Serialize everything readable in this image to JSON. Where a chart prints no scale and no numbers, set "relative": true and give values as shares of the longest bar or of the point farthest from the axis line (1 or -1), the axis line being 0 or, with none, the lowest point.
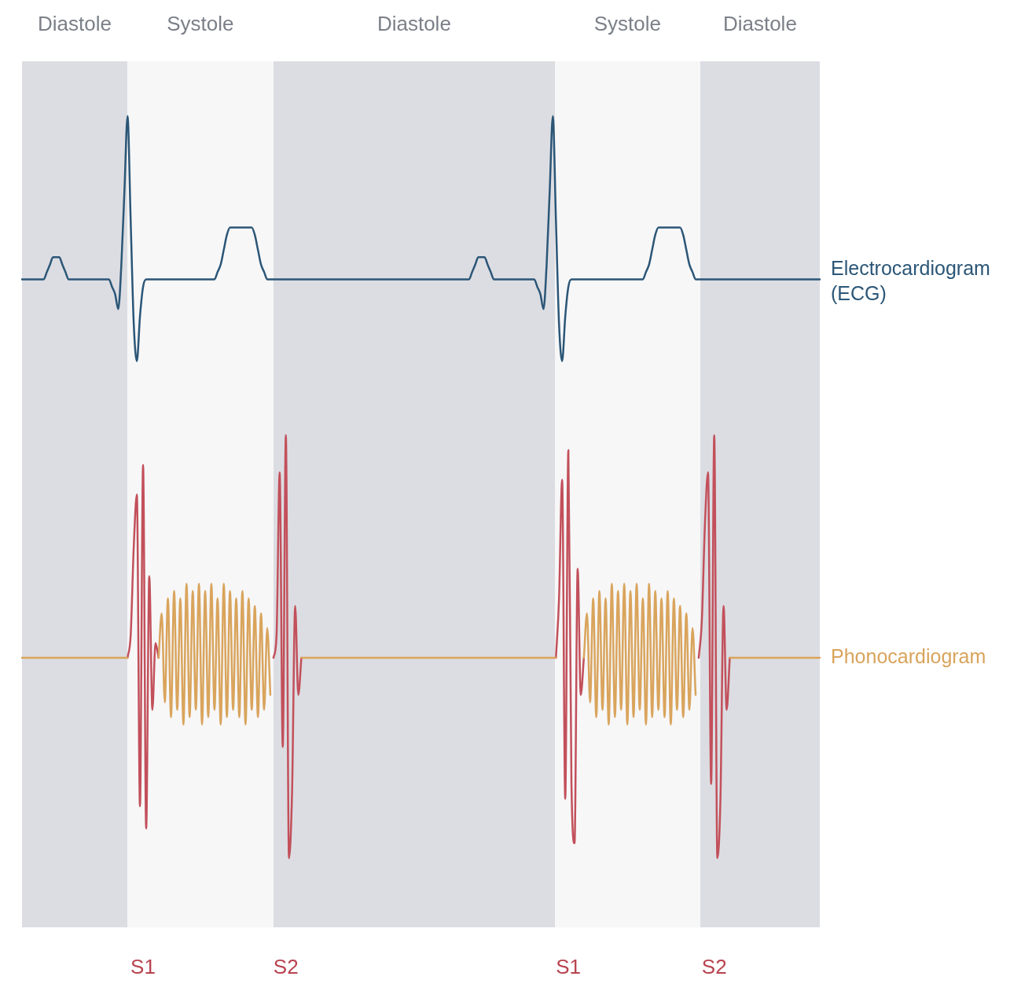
{
  "chart_data": {
    "type": "line",
    "relative": true,
    "categories": [
      null,
      null,
      null,
      null,
      null,
      null,
      null,
      null,
      null,
      null,
      null,
      null,
      null,
      null,
      null,
      null,
      null,
      null,
      null,
      null,
      null,
      null,
      null,
      null,
      null,
      null,
      null,
      null,
      null,
      null,
      null,
      null,
      null,
      null,
      null,
      null,
      null,
      null,
      null,
      "S1",
      null,
      null,
      null,
      null,
      null,
      null,
      null,
      null,
      null,
      null,
      null,
      null,
      null,
      null,
      null,
      null,
      null,
      null,
      null,
      null,
      null,
      null,
      null,
      null,
      null,
      null,
      null,
      null,
      null,
      null,
      null,
      null,
      null,
      null,
      null,
      null,
      null,
      null,
      null,
      null,
      null,
      null,
      null,
      null,
      null,
      "S2",
      null,
      null,
      null,
      null,
      null,
      null,
      null,
      null,
      null,
      null,
      null,
      null,
      null,
      null,
      null,
      null,
      null,
      null,
      null,
      null,
      null,
      null,
      null,
      null,
      null,
      null,
      null,
      null,
      null,
      null,
      null,
      null,
      null,
      null,
      null,
      null,
      null,
      null,
      null,
      null,
      null,
      null,
      null,
      null,
      null,
      null,
      null,
      null,
      null,
      null,
      null,
      null,
      null,
      null,
      null,
      null,
      null,
      null,
      null,
      null,
      null,
      null,
      null,
      null,
      null,
      null,
      null,
      null,
      null,
      null,
      null,
      null,
      null,
      null,
      null,
      null,
      null,
      null,
      null,
      null,
      null,
      null,
      null,
      null,
      null,
      null,
      null,
      null,
      null,
      null,
      "S1",
      null,
      null,
      null,
      null,
      null,
      null,
      null,
      null,
      null,
      null,
      null,
      null,
      null,
      null,
      null,
      null,
      null,
      null,
      null,
      null,
      null,
      null,
      null,
      null,
      null,
      null,
      null,
      null,
      null,
      null,
      null,
      null,
      null,
      null,
      null,
      null,
      null,
      null,
      null,
      null,
      null,
      null,
      null,
      null,
      null,
      null,
      "S2",
      null,
      null,
      null,
      null,
      null,
      null,
      null,
      null,
      null,
      null,
      null,
      null,
      null,
      null,
      null,
      null,
      null,
      null,
      null,
      null,
      null,
      null,
      null,
      null,
      null,
      null,
      null,
      null,
      null,
      null,
      null,
      null,
      null,
      null
    ],
    "annotations": [
      "Diastole",
      "Systole",
      "Diastole",
      "Systole",
      "Diastole"
    ],
    "series": [
      {
        "name": "Electrocardiogram (ECG)",
        "color": "#2b5677",
        "values": [
          0.78,
          0.78,
          0.78,
          0.78,
          0.78,
          0.78,
          0.78,
          0.78,
          0.79,
          0.8,
          0.81,
          0.81,
          0.81,
          0.8,
          0.79,
          0.78,
          0.78,
          0.78,
          0.78,
          0.78,
          0.78,
          0.78,
          0.78,
          0.78,
          0.78,
          0.78,
          0.78,
          0.78,
          0.78,
          0.77,
          0.76,
          0.74,
          0.8,
          0.9,
          1.0,
          0.86,
          0.72,
          0.67,
          0.73,
          0.77,
          0.78,
          0.78,
          0.78,
          0.78,
          0.78,
          0.78,
          0.78,
          0.78,
          0.78,
          0.78,
          0.78,
          0.78,
          0.78,
          0.78,
          0.78,
          0.78,
          0.78,
          0.78,
          0.78,
          0.78,
          0.78,
          0.78,
          0.78,
          0.79,
          0.8,
          0.82,
          0.84,
          0.85,
          0.85,
          0.85,
          0.85,
          0.85,
          0.85,
          0.85,
          0.85,
          0.84,
          0.82,
          0.8,
          0.79,
          0.78,
          0.78,
          0.78,
          0.78,
          0.78,
          0.78,
          0.78,
          0.78,
          0.78,
          0.78,
          0.78,
          0.78,
          0.78,
          0.78,
          0.78,
          0.78,
          0.78,
          0.78,
          0.78,
          0.78,
          0.78,
          0.78,
          0.78,
          0.78,
          0.78,
          0.78,
          0.78,
          0.78,
          0.78,
          0.78,
          0.78,
          0.78,
          0.78,
          0.78,
          0.78,
          0.78,
          0.78,
          0.78,
          0.78,
          0.78,
          0.78,
          0.78,
          0.78,
          0.78,
          0.78,
          0.78,
          0.78,
          0.78,
          0.78,
          0.78,
          0.78,
          0.78,
          0.78,
          0.78,
          0.78,
          0.78,
          0.78,
          0.78,
          0.78,
          0.78,
          0.78,
          0.78,
          0.78,
          0.78,
          0.78,
          0.78,
          0.79,
          0.8,
          0.81,
          0.81,
          0.81,
          0.8,
          0.79,
          0.78,
          0.78,
          0.78,
          0.78,
          0.78,
          0.78,
          0.78,
          0.78,
          0.78,
          0.78,
          0.78,
          0.78,
          0.78,
          0.78,
          0.77,
          0.76,
          0.74,
          0.8,
          0.9,
          1.0,
          0.86,
          0.72,
          0.67,
          0.73,
          0.77,
          0.78,
          0.78,
          0.78,
          0.78,
          0.78,
          0.78,
          0.78,
          0.78,
          0.78,
          0.78,
          0.78,
          0.78,
          0.78,
          0.78,
          0.78,
          0.78,
          0.78,
          0.78,
          0.78,
          0.78,
          0.78,
          0.78,
          0.78,
          0.78,
          0.79,
          0.8,
          0.82,
          0.84,
          0.85,
          0.85,
          0.85,
          0.85,
          0.85,
          0.85,
          0.85,
          0.85,
          0.84,
          0.82,
          0.8,
          0.79,
          0.78,
          0.78,
          0.78,
          0.78,
          0.78,
          0.78,
          0.78,
          0.78,
          0.78,
          0.78,
          0.78,
          0.78,
          0.78,
          0.78,
          0.78,
          0.78,
          0.78,
          0.78,
          0.78,
          0.78,
          0.78,
          0.78,
          0.78,
          0.78,
          0.78,
          0.78,
          0.78,
          0.78,
          0.78,
          0.78,
          0.78,
          0.78,
          0.78,
          0.78,
          0.78,
          0.78,
          0.78,
          0.78,
          0.78,
          0.78,
          0.78
        ]
      },
      {
        "name": "Phonocardiogram",
        "color": "#d9a45c",
        "values": [
          0.27,
          0.27,
          0.27,
          0.27,
          0.27,
          0.27,
          0.27,
          0.27,
          0.27,
          0.27,
          0.27,
          0.27,
          0.27,
          0.27,
          0.27,
          0.27,
          0.27,
          0.27,
          0.27,
          0.27,
          0.27,
          0.27,
          0.27,
          0.27,
          0.27,
          0.27,
          0.27,
          0.27,
          0.27,
          0.27,
          0.27,
          0.27,
          0.27,
          0.27,
          0.27,
          null,
          null,
          null,
          null,
          null,
          null,
          null,
          null,
          null,
          0.27,
          0.33,
          0.21,
          0.35,
          0.19,
          0.36,
          0.2,
          0.35,
          0.18,
          0.37,
          0.19,
          0.36,
          0.2,
          0.37,
          0.18,
          0.36,
          0.19,
          0.37,
          0.2,
          0.35,
          0.18,
          0.37,
          0.19,
          0.36,
          0.2,
          0.35,
          0.19,
          0.36,
          0.18,
          0.35,
          0.2,
          0.34,
          0.19,
          0.33,
          0.2,
          0.31,
          0.22,
          null,
          null,
          null,
          null,
          null,
          null,
          null,
          null,
          null,
          0.27,
          0.27,
          0.27,
          0.27,
          0.27,
          0.27,
          0.27,
          0.27,
          0.27,
          0.27,
          0.27,
          0.27,
          0.27,
          0.27,
          0.27,
          0.27,
          0.27,
          0.27,
          0.27,
          0.27,
          0.27,
          0.27,
          0.27,
          0.27,
          0.27,
          0.27,
          0.27,
          0.27,
          0.27,
          0.27,
          0.27,
          0.27,
          0.27,
          0.27,
          0.27,
          0.27,
          0.27,
          0.27,
          0.27,
          0.27,
          0.27,
          0.27,
          0.27,
          0.27,
          0.27,
          0.27,
          0.27,
          0.27,
          0.27,
          0.27,
          0.27,
          0.27,
          0.27,
          0.27,
          0.27,
          0.27,
          0.27,
          0.27,
          0.27,
          0.27,
          0.27,
          0.27,
          0.27,
          0.27,
          0.27,
          0.27,
          0.27,
          0.27,
          0.27,
          0.27,
          0.27,
          0.27,
          0.27,
          0.27,
          0.27,
          0.27,
          0.27,
          0.27,
          0.27,
          0.27,
          0.27,
          0.27,
          0.27,
          null,
          null,
          null,
          null,
          null,
          null,
          null,
          null,
          0.27,
          0.33,
          0.21,
          0.35,
          0.19,
          0.36,
          0.2,
          0.35,
          0.18,
          0.37,
          0.19,
          0.36,
          0.2,
          0.37,
          0.18,
          0.36,
          0.19,
          0.37,
          0.2,
          0.35,
          0.18,
          0.37,
          0.19,
          0.36,
          0.2,
          0.35,
          0.19,
          0.36,
          0.18,
          0.35,
          0.2,
          0.34,
          0.19,
          0.33,
          0.2,
          0.31,
          0.22,
          null,
          null,
          null,
          null,
          null,
          null,
          null,
          null,
          null,
          null,
          0.27,
          0.27,
          0.27,
          0.27,
          0.27,
          0.27,
          0.27,
          0.27,
          0.27,
          0.27,
          0.27,
          0.27,
          0.27,
          0.27,
          0.27,
          0.27,
          0.27,
          0.27,
          0.27,
          0.27,
          0.27,
          0.27,
          0.27,
          0.27,
          0.27,
          0.27,
          0.27,
          0.27,
          0.27,
          0.27
        ]
      },
      {
        "color": "#c2505b",
        "values": [
          null,
          null,
          null,
          null,
          null,
          null,
          null,
          null,
          null,
          null,
          null,
          null,
          null,
          null,
          null,
          null,
          null,
          null,
          null,
          null,
          null,
          null,
          null,
          null,
          null,
          null,
          null,
          null,
          null,
          null,
          null,
          null,
          null,
          null,
          0.27,
          0.3,
          0.42,
          0.49,
          0.07,
          0.53,
          0.04,
          0.38,
          0.2,
          0.29,
          0.27,
          null,
          null,
          null,
          null,
          null,
          null,
          null,
          null,
          null,
          null,
          null,
          null,
          null,
          null,
          null,
          null,
          null,
          null,
          null,
          null,
          null,
          null,
          null,
          null,
          null,
          null,
          null,
          null,
          null,
          null,
          null,
          null,
          null,
          null,
          null,
          null,
          0.27,
          0.3,
          0.52,
          0.15,
          0.57,
          0.0,
          0.09,
          0.34,
          0.22,
          0.27,
          null,
          null,
          null,
          null,
          null,
          null,
          null,
          null,
          null,
          null,
          null,
          null,
          null,
          null,
          null,
          null,
          null,
          null,
          null,
          null,
          null,
          null,
          null,
          null,
          null,
          null,
          null,
          null,
          null,
          null,
          null,
          null,
          null,
          null,
          null,
          null,
          null,
          null,
          null,
          null,
          null,
          null,
          null,
          null,
          null,
          null,
          null,
          null,
          null,
          null,
          null,
          null,
          null,
          null,
          null,
          null,
          null,
          null,
          null,
          null,
          null,
          null,
          null,
          null,
          null,
          null,
          null,
          null,
          null,
          null,
          null,
          null,
          null,
          null,
          null,
          null,
          null,
          null,
          null,
          null,
          null,
          0.27,
          0.35,
          0.51,
          0.08,
          0.55,
          0.1,
          0.02,
          0.39,
          0.22,
          0.27,
          null,
          null,
          null,
          null,
          null,
          null,
          null,
          null,
          null,
          null,
          null,
          null,
          null,
          null,
          null,
          null,
          null,
          null,
          null,
          null,
          null,
          null,
          null,
          null,
          null,
          null,
          null,
          null,
          null,
          null,
          null,
          null,
          null,
          null,
          null,
          null,
          0.27,
          0.32,
          0.45,
          0.52,
          0.1,
          0.57,
          0.0,
          0.08,
          0.34,
          0.2,
          0.27,
          null,
          null,
          null,
          null,
          null,
          null,
          null,
          null,
          null,
          null,
          null,
          null,
          null,
          null,
          null,
          null,
          null,
          null,
          null,
          null,
          null,
          null,
          null,
          null,
          null,
          null,
          null,
          null,
          null
        ]
      }
    ]
  }
}
